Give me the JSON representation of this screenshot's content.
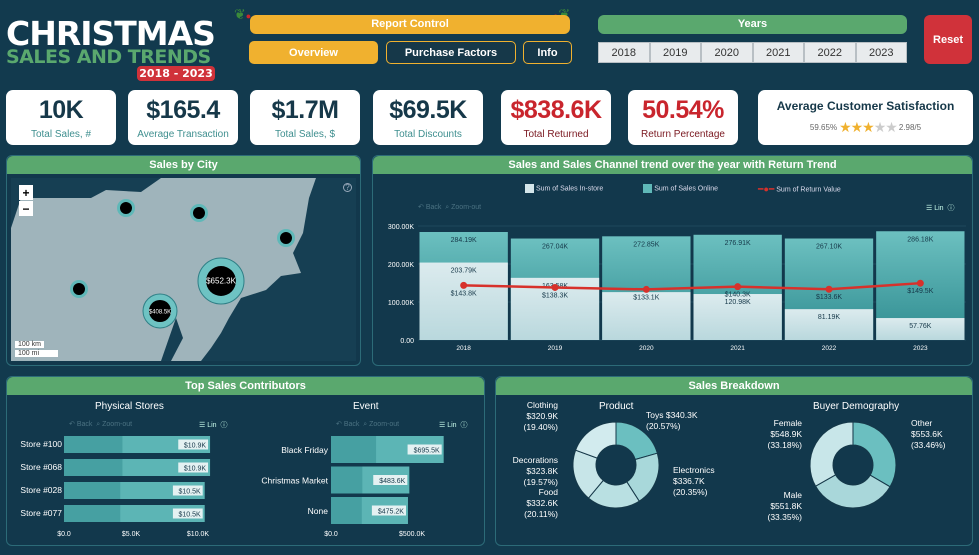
{
  "header": {
    "title_line1": "CHRISTMAS",
    "title_line2": "SALES AND TRENDS",
    "years_badge": "2018 - 2023"
  },
  "report_control": {
    "label": "Report Control",
    "buttons": [
      "Overview",
      "Purchase Factors",
      "Info"
    ],
    "active": "Overview"
  },
  "years": {
    "label": "Years",
    "options": [
      "2018",
      "2019",
      "2020",
      "2021",
      "2022",
      "2023"
    ]
  },
  "reset_label": "Reset",
  "colors": {
    "background": "#123a4e",
    "green": "#5aa86e",
    "orange": "#f0b12f",
    "red": "#d0323a",
    "teal": "#5fb8b8",
    "light": "#d4e6ea",
    "line": "#d7312b"
  },
  "kpis": [
    {
      "value": "10K",
      "label": "Total Sales, #"
    },
    {
      "value": "$165.4",
      "label": "Average Transaction"
    },
    {
      "value": "$1.7M",
      "label": "Total Sales, $"
    },
    {
      "value": "$69.5K",
      "label": "Total Discounts"
    },
    {
      "value": "$838.6K",
      "label": "Total Returned"
    },
    {
      "value": "50.54%",
      "label": "Return Percentage"
    }
  ],
  "satisfaction": {
    "title": "Average Customer Satisfaction",
    "percent": "59.65%",
    "score": "2.98/5",
    "stars": 2.98
  },
  "map": {
    "title": "Sales by City",
    "zoom_in": "+",
    "zoom_out": "−",
    "scale_km": "100 km",
    "scale_mi": "100 mi",
    "bubbles": [
      "$652.3K",
      "$408.5K"
    ]
  },
  "trend": {
    "title": "Sales and Sales Channel trend over the year with Return Trend",
    "back": "Back",
    "zoom_out": "Zoom-out",
    "lin": "Lin"
  },
  "top_sales": {
    "title": "Top Sales Contributors",
    "back": "Back",
    "zoom_out": "Zoom-out",
    "lin": "Lin"
  },
  "breakdown": {
    "title": "Sales Breakdown"
  },
  "chart_data": [
    {
      "type": "bar",
      "title": "Sales and Sales Channel trend over the year with Return Trend",
      "categories": [
        "2018",
        "2019",
        "2020",
        "2021",
        "2022",
        "2023"
      ],
      "ylim": [
        0,
        300
      ],
      "yticks": [
        "0.00",
        "100.00K",
        "200.00K",
        "300.00K"
      ],
      "legend": "top",
      "series": [
        {
          "name": "Sum of Sales In-store",
          "values": [
            203.79,
            163.58,
            126,
            120.98,
            81.19,
            57.76
          ],
          "labels": [
            "203.79K",
            "163.58K",
            "",
            "120.98K",
            "81.19K",
            "57.76K"
          ]
        },
        {
          "name": "Sum of Sales Online",
          "values": [
            284.19,
            267.04,
            272.85,
            276.91,
            267.1,
            286.18
          ],
          "labels": [
            "284.19K",
            "267.04K",
            "272.85K",
            "276.91K",
            "267.10K",
            "286.18K"
          ]
        },
        {
          "name": "Sum of Return Value",
          "type": "line",
          "values": [
            143.8,
            138.3,
            133.1,
            140.3,
            133.6,
            149.5
          ],
          "labels": [
            "$143.8K",
            "$138.3K",
            "$133.1K",
            "$140.3K",
            "$133.6K",
            "$149.5K"
          ]
        }
      ]
    },
    {
      "type": "bar",
      "orientation": "horizontal",
      "title": "Physical Stores",
      "categories": [
        "Store #100",
        "Store #068",
        "Store #028",
        "Store #077"
      ],
      "values": [
        10.9,
        10.9,
        10.5,
        10.5
      ],
      "labels": [
        "$10.9K",
        "$10.9K",
        "$10.5K",
        "$10.5K"
      ],
      "xlim": [
        0,
        10.9
      ],
      "xticks": [
        "$0.0",
        "$5.0K",
        "$10.0K"
      ]
    },
    {
      "type": "bar",
      "orientation": "horizontal",
      "title": "Event",
      "categories": [
        "Black Friday",
        "Christmas Market",
        "None"
      ],
      "values": [
        695.5,
        483.6,
        475.2
      ],
      "labels": [
        "$695.5K",
        "$483.6K",
        "$475.2K"
      ],
      "xticks": [
        "$0.0",
        "$500.0K"
      ]
    },
    {
      "type": "pie",
      "donut": true,
      "title": "Product",
      "slices": [
        {
          "name": "Toys",
          "value": "$340.3K",
          "pct": 20.57,
          "pct_label": "(20.57%)"
        },
        {
          "name": "Electronics",
          "value": "$336.7K",
          "pct": 20.35,
          "pct_label": "(20.35%)"
        },
        {
          "name": "Food",
          "value": "$332.6K",
          "pct": 20.11,
          "pct_label": "(20.11%)"
        },
        {
          "name": "Decorations",
          "value": "$323.8K",
          "pct": 19.57,
          "pct_label": "(19.57%)"
        },
        {
          "name": "Clothing",
          "value": "$320.9K",
          "pct": 19.4,
          "pct_label": "(19.40%)"
        }
      ]
    },
    {
      "type": "pie",
      "donut": true,
      "title": "Buyer Demography",
      "slices": [
        {
          "name": "Other",
          "value": "$553.6K",
          "pct": 33.46,
          "pct_label": "(33.46%)"
        },
        {
          "name": "Male",
          "value": "$551.8K",
          "pct": 33.35,
          "pct_label": "(33.35%)"
        },
        {
          "name": "Female",
          "value": "$548.9K",
          "pct": 33.18,
          "pct_label": "(33.18%)"
        }
      ]
    }
  ]
}
